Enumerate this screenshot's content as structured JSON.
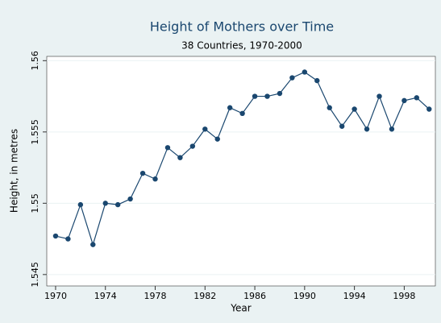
{
  "chart_data": {
    "type": "line",
    "title": "Height of Mothers over Time",
    "subtitle": "38 Countries, 1970-2000",
    "x_label": "Year",
    "y_label": "Height, in metres",
    "x": [
      1970,
      1971,
      1972,
      1973,
      1974,
      1975,
      1976,
      1977,
      1978,
      1979,
      1980,
      1981,
      1982,
      1983,
      1984,
      1985,
      1986,
      1987,
      1988,
      1989,
      1990,
      1991,
      1992,
      1993,
      1994,
      1995,
      1996,
      1997,
      1998,
      1999,
      2000
    ],
    "series": [
      {
        "color": "#1a476f",
        "values": [
          1.5477,
          1.5475,
          1.5499,
          1.5471,
          1.55,
          1.5499,
          1.5503,
          1.5521,
          1.5517,
          1.5539,
          1.5532,
          1.554,
          1.5552,
          1.5545,
          1.5567,
          1.5563,
          1.5575,
          1.5575,
          1.5577,
          1.5588,
          1.5592,
          1.5586,
          1.5567,
          1.5554,
          1.5566,
          1.5552,
          1.5575,
          1.5552,
          1.5572,
          1.5574,
          1.5566
        ]
      }
    ],
    "xlim": [
      1969.29,
      2000.5
    ],
    "xticks": [
      1970,
      1974,
      1978,
      1982,
      1986,
      1990,
      1994,
      1998
    ],
    "ylim": [
      1.5442,
      1.5603
    ],
    "yticks": [
      1.545,
      1.55,
      1.555,
      1.56
    ],
    "grid": true
  }
}
